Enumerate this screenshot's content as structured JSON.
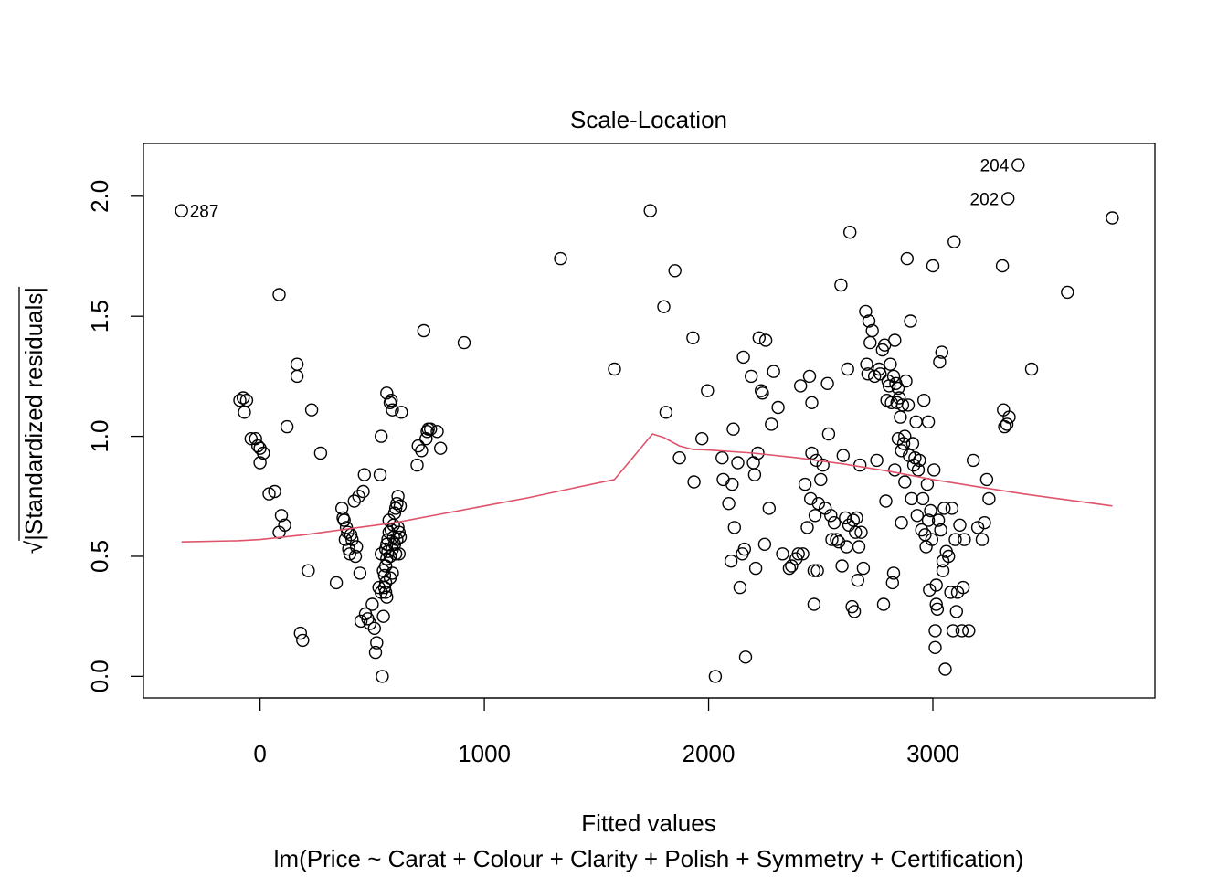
{
  "chart_data": {
    "type": "scatter",
    "title": "Scale-Location",
    "xlabel": "Fitted values",
    "subtitle": "lm(Price ~ Carat + Colour + Clarity + Polish + Symmetry + Certification)",
    "ylabel_root": "√",
    "ylabel_text": "|Standardized residuals|",
    "xlim": [
      -520,
      3990
    ],
    "ylim": [
      -0.09,
      2.22
    ],
    "xticks": [
      0,
      1000,
      2000,
      3000
    ],
    "xtick_labels": [
      "0",
      "1000",
      "2000",
      "3000"
    ],
    "yticks": [
      0.0,
      0.5,
      1.0,
      1.5,
      2.0
    ],
    "ytick_labels": [
      "0.0",
      "0.5",
      "1.0",
      "1.5",
      "2.0"
    ],
    "grid": false,
    "point_color": "#000000",
    "smooth_color": "#DF536B",
    "labeled_points": [
      {
        "label": "287",
        "x": -350,
        "y": 1.94,
        "side": "right"
      },
      {
        "label": "204",
        "x": 3380,
        "y": 2.13,
        "side": "left"
      },
      {
        "label": "202",
        "x": 3335,
        "y": 1.99,
        "side": "left"
      }
    ],
    "points": [
      [
        -350,
        1.94
      ],
      [
        -90,
        1.15
      ],
      [
        -75,
        1.16
      ],
      [
        -70,
        1.1
      ],
      [
        -60,
        1.15
      ],
      [
        -40,
        0.99
      ],
      [
        -20,
        0.99
      ],
      [
        -10,
        0.96
      ],
      [
        0,
        0.95
      ],
      [
        0,
        0.89
      ],
      [
        15,
        0.93
      ],
      [
        40,
        0.76
      ],
      [
        65,
        0.77
      ],
      [
        85,
        1.59
      ],
      [
        85,
        0.6
      ],
      [
        95,
        0.67
      ],
      [
        110,
        0.63
      ],
      [
        120,
        1.04
      ],
      [
        165,
        1.3
      ],
      [
        165,
        1.25
      ],
      [
        180,
        0.18
      ],
      [
        190,
        0.15
      ],
      [
        215,
        0.44
      ],
      [
        230,
        1.11
      ],
      [
        270,
        0.93
      ],
      [
        340,
        0.39
      ],
      [
        365,
        0.7
      ],
      [
        370,
        0.66
      ],
      [
        375,
        0.65
      ],
      [
        380,
        0.57
      ],
      [
        385,
        0.62
      ],
      [
        390,
        0.6
      ],
      [
        395,
        0.53
      ],
      [
        400,
        0.51
      ],
      [
        405,
        0.59
      ],
      [
        410,
        0.57
      ],
      [
        420,
        0.73
      ],
      [
        425,
        0.5
      ],
      [
        430,
        0.54
      ],
      [
        440,
        0.75
      ],
      [
        445,
        0.43
      ],
      [
        450,
        0.23
      ],
      [
        460,
        0.77
      ],
      [
        465,
        0.84
      ],
      [
        470,
        0.26
      ],
      [
        480,
        0.24
      ],
      [
        490,
        0.22
      ],
      [
        500,
        0.3
      ],
      [
        510,
        0.2
      ],
      [
        515,
        0.1
      ],
      [
        520,
        0.14
      ],
      [
        530,
        0.37
      ],
      [
        535,
        0.84
      ],
      [
        540,
        1.0
      ],
      [
        540,
        0.51
      ],
      [
        540,
        0.35
      ],
      [
        545,
        0.0
      ],
      [
        550,
        0.25
      ],
      [
        550,
        0.44
      ],
      [
        555,
        0.42
      ],
      [
        555,
        0.37
      ],
      [
        560,
        0.35
      ],
      [
        560,
        0.39
      ],
      [
        560,
        0.46
      ],
      [
        560,
        0.53
      ],
      [
        565,
        1.18
      ],
      [
        565,
        0.55
      ],
      [
        565,
        0.49
      ],
      [
        565,
        0.33
      ],
      [
        570,
        0.52
      ],
      [
        570,
        0.57
      ],
      [
        575,
        0.6
      ],
      [
        575,
        0.65
      ],
      [
        580,
        0.41
      ],
      [
        580,
        0.5
      ],
      [
        580,
        1.14
      ],
      [
        585,
        1.15
      ],
      [
        585,
        0.61
      ],
      [
        590,
        1.11
      ],
      [
        590,
        0.53
      ],
      [
        590,
        0.43
      ],
      [
        595,
        0.58
      ],
      [
        595,
        0.63
      ],
      [
        600,
        0.68
      ],
      [
        600,
        0.55
      ],
      [
        605,
        0.51
      ],
      [
        605,
        0.7
      ],
      [
        610,
        0.72
      ],
      [
        610,
        0.57
      ],
      [
        615,
        0.62
      ],
      [
        615,
        0.75
      ],
      [
        620,
        0.6
      ],
      [
        620,
        0.51
      ],
      [
        625,
        0.58
      ],
      [
        625,
        0.71
      ],
      [
        630,
        1.1
      ],
      [
        700,
        0.88
      ],
      [
        705,
        0.96
      ],
      [
        720,
        0.94
      ],
      [
        730,
        1.44
      ],
      [
        740,
        0.99
      ],
      [
        745,
        1.02
      ],
      [
        750,
        1.03
      ],
      [
        760,
        1.03
      ],
      [
        790,
        1.02
      ],
      [
        805,
        0.95
      ],
      [
        910,
        1.39
      ],
      [
        1340,
        1.74
      ],
      [
        1580,
        1.28
      ],
      [
        1740,
        1.94
      ],
      [
        1800,
        1.54
      ],
      [
        1810,
        1.1
      ],
      [
        1850,
        1.69
      ],
      [
        1870,
        0.91
      ],
      [
        1930,
        1.41
      ],
      [
        1935,
        0.81
      ],
      [
        1970,
        0.99
      ],
      [
        1995,
        1.19
      ],
      [
        2030,
        0.0
      ],
      [
        2060,
        0.91
      ],
      [
        2065,
        0.82
      ],
      [
        2090,
        0.72
      ],
      [
        2100,
        0.48
      ],
      [
        2105,
        0.8
      ],
      [
        2110,
        1.03
      ],
      [
        2115,
        0.62
      ],
      [
        2130,
        0.89
      ],
      [
        2140,
        0.37
      ],
      [
        2150,
        0.51
      ],
      [
        2155,
        1.33
      ],
      [
        2160,
        0.53
      ],
      [
        2165,
        0.08
      ],
      [
        2190,
        1.25
      ],
      [
        2200,
        0.89
      ],
      [
        2205,
        0.84
      ],
      [
        2210,
        0.45
      ],
      [
        2220,
        0.93
      ],
      [
        2225,
        1.41
      ],
      [
        2235,
        1.19
      ],
      [
        2240,
        1.18
      ],
      [
        2250,
        0.55
      ],
      [
        2255,
        1.4
      ],
      [
        2270,
        0.7
      ],
      [
        2280,
        1.05
      ],
      [
        2290,
        1.27
      ],
      [
        2310,
        1.12
      ],
      [
        2330,
        0.51
      ],
      [
        2360,
        0.45
      ],
      [
        2370,
        0.46
      ],
      [
        2390,
        0.49
      ],
      [
        2400,
        0.51
      ],
      [
        2410,
        1.21
      ],
      [
        2420,
        0.51
      ],
      [
        2430,
        0.8
      ],
      [
        2440,
        0.62
      ],
      [
        2450,
        1.25
      ],
      [
        2455,
        0.74
      ],
      [
        2460,
        0.93
      ],
      [
        2460,
        1.14
      ],
      [
        2470,
        0.3
      ],
      [
        2470,
        0.44
      ],
      [
        2475,
        0.67
      ],
      [
        2480,
        0.9
      ],
      [
        2485,
        0.44
      ],
      [
        2490,
        0.72
      ],
      [
        2500,
        0.82
      ],
      [
        2510,
        0.88
      ],
      [
        2520,
        0.7
      ],
      [
        2530,
        1.22
      ],
      [
        2535,
        1.01
      ],
      [
        2545,
        0.67
      ],
      [
        2550,
        0.57
      ],
      [
        2560,
        0.64
      ],
      [
        2570,
        0.57
      ],
      [
        2580,
        0.56
      ],
      [
        2590,
        1.63
      ],
      [
        2595,
        0.46
      ],
      [
        2600,
        0.92
      ],
      [
        2610,
        0.66
      ],
      [
        2615,
        0.54
      ],
      [
        2620,
        1.28
      ],
      [
        2625,
        0.63
      ],
      [
        2630,
        1.85
      ],
      [
        2640,
        0.29
      ],
      [
        2645,
        0.65
      ],
      [
        2650,
        0.27
      ],
      [
        2655,
        0.6
      ],
      [
        2660,
        0.66
      ],
      [
        2665,
        0.4
      ],
      [
        2670,
        0.54
      ],
      [
        2675,
        0.88
      ],
      [
        2680,
        0.6
      ],
      [
        2690,
        0.45
      ],
      [
        2700,
        1.52
      ],
      [
        2705,
        1.3
      ],
      [
        2710,
        1.26
      ],
      [
        2715,
        1.48
      ],
      [
        2720,
        1.39
      ],
      [
        2730,
        1.44
      ],
      [
        2740,
        1.25
      ],
      [
        2750,
        0.9
      ],
      [
        2760,
        1.28
      ],
      [
        2765,
        1.26
      ],
      [
        2775,
        1.36
      ],
      [
        2780,
        0.3
      ],
      [
        2785,
        1.38
      ],
      [
        2790,
        0.73
      ],
      [
        2795,
        1.15
      ],
      [
        2800,
        1.23
      ],
      [
        2805,
        1.21
      ],
      [
        2810,
        1.3
      ],
      [
        2815,
        1.14
      ],
      [
        2820,
        0.39
      ],
      [
        2825,
        0.43
      ],
      [
        2825,
        1.25
      ],
      [
        2830,
        1.4
      ],
      [
        2830,
        0.86
      ],
      [
        2835,
        1.22
      ],
      [
        2840,
        1.14
      ],
      [
        2845,
        1.2
      ],
      [
        2845,
        0.99
      ],
      [
        2850,
        1.16
      ],
      [
        2855,
        1.08
      ],
      [
        2860,
        0.94
      ],
      [
        2860,
        0.64
      ],
      [
        2865,
        1.13
      ],
      [
        2870,
        0.97
      ],
      [
        2875,
        1.0
      ],
      [
        2875,
        0.81
      ],
      [
        2880,
        1.23
      ],
      [
        2885,
        1.74
      ],
      [
        2890,
        1.13
      ],
      [
        2895,
        0.92
      ],
      [
        2900,
        1.48
      ],
      [
        2905,
        0.74
      ],
      [
        2910,
        0.97
      ],
      [
        2915,
        0.88
      ],
      [
        2920,
        0.91
      ],
      [
        2925,
        1.06
      ],
      [
        2930,
        0.67
      ],
      [
        2935,
        0.86
      ],
      [
        2940,
        0.9
      ],
      [
        2950,
        0.61
      ],
      [
        2955,
        0.74
      ],
      [
        2960,
        1.15
      ],
      [
        2965,
        0.59
      ],
      [
        2970,
        0.54
      ],
      [
        2975,
        0.8
      ],
      [
        2980,
        0.65
      ],
      [
        2980,
        1.06
      ],
      [
        2985,
        0.36
      ],
      [
        2990,
        0.69
      ],
      [
        2995,
        0.57
      ],
      [
        3000,
        1.71
      ],
      [
        3005,
        0.86
      ],
      [
        3010,
        0.19
      ],
      [
        3010,
        0.12
      ],
      [
        3015,
        0.38
      ],
      [
        3015,
        0.3
      ],
      [
        3020,
        0.28
      ],
      [
        3025,
        0.65
      ],
      [
        3030,
        1.31
      ],
      [
        3035,
        0.61
      ],
      [
        3040,
        1.35
      ],
      [
        3045,
        0.48
      ],
      [
        3045,
        0.44
      ],
      [
        3050,
        0.7
      ],
      [
        3055,
        0.03
      ],
      [
        3060,
        0.52
      ],
      [
        3070,
        0.5
      ],
      [
        3080,
        0.35
      ],
      [
        3085,
        0.7
      ],
      [
        3090,
        0.19
      ],
      [
        3095,
        1.81
      ],
      [
        3100,
        0.57
      ],
      [
        3105,
        0.27
      ],
      [
        3110,
        0.35
      ],
      [
        3120,
        0.63
      ],
      [
        3130,
        0.19
      ],
      [
        3135,
        0.37
      ],
      [
        3140,
        0.57
      ],
      [
        3160,
        0.19
      ],
      [
        3180,
        0.9
      ],
      [
        3200,
        0.62
      ],
      [
        3220,
        0.57
      ],
      [
        3230,
        0.64
      ],
      [
        3240,
        0.82
      ],
      [
        3250,
        0.74
      ],
      [
        3310,
        1.71
      ],
      [
        3315,
        1.11
      ],
      [
        3320,
        1.04
      ],
      [
        3330,
        1.05
      ],
      [
        3340,
        1.08
      ],
      [
        3380,
        2.13
      ],
      [
        3335,
        1.99
      ],
      [
        3440,
        1.28
      ],
      [
        3600,
        1.6
      ],
      [
        3800,
        1.91
      ]
    ],
    "smooth_line": [
      [
        -350,
        0.56
      ],
      [
        -100,
        0.565
      ],
      [
        0,
        0.57
      ],
      [
        200,
        0.59
      ],
      [
        400,
        0.615
      ],
      [
        600,
        0.64
      ],
      [
        800,
        0.675
      ],
      [
        1000,
        0.71
      ],
      [
        1200,
        0.745
      ],
      [
        1400,
        0.785
      ],
      [
        1580,
        0.82
      ],
      [
        1750,
        1.01
      ],
      [
        1800,
        0.995
      ],
      [
        1870,
        0.96
      ],
      [
        1930,
        0.945
      ],
      [
        2000,
        0.943
      ],
      [
        2200,
        0.93
      ],
      [
        2400,
        0.91
      ],
      [
        2600,
        0.885
      ],
      [
        2800,
        0.855
      ],
      [
        3000,
        0.82
      ],
      [
        3200,
        0.79
      ],
      [
        3400,
        0.76
      ],
      [
        3600,
        0.735
      ],
      [
        3800,
        0.71
      ]
    ]
  }
}
